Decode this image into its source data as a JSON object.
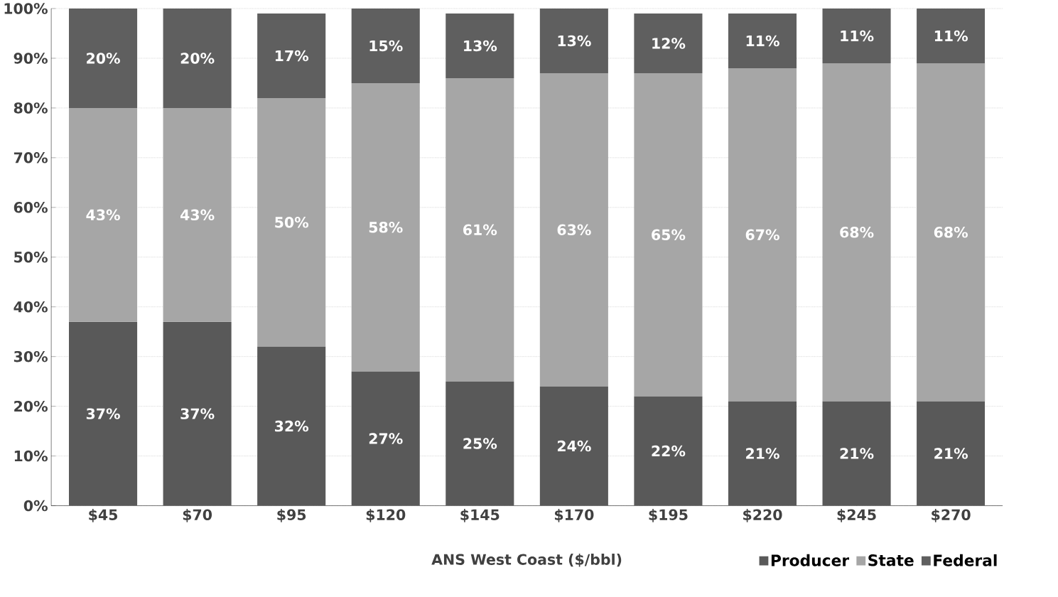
{
  "chart_data": {
    "type": "bar",
    "stacked": true,
    "xlabel": "ANS West Coast ($/bbl)",
    "categories": [
      "$45",
      "$70",
      "$95",
      "$120",
      "$145",
      "$170",
      "$195",
      "$220",
      "$245",
      "$270"
    ],
    "series": [
      {
        "name": "Producer",
        "color": "#595959",
        "values": [
          37,
          37,
          32,
          27,
          25,
          24,
          22,
          21,
          21,
          21
        ],
        "value_labels": [
          "37%",
          "37%",
          "32%",
          "27%",
          "25%",
          "24%",
          "22%",
          "21%",
          "21%",
          "21%"
        ]
      },
      {
        "name": "State",
        "color": "#a6a6a6",
        "values": [
          43,
          43,
          50,
          58,
          61,
          63,
          65,
          67,
          68,
          68
        ],
        "value_labels": [
          "43%",
          "43%",
          "50%",
          "58%",
          "61%",
          "63%",
          "65%",
          "67%",
          "68%",
          "68%"
        ]
      },
      {
        "name": "Federal",
        "color": "#5f5f5f",
        "values": [
          20,
          20,
          17,
          15,
          13,
          13,
          12,
          11,
          11,
          11
        ],
        "value_labels": [
          "20%",
          "20%",
          "17%",
          "15%",
          "13%",
          "13%",
          "12%",
          "11%",
          "11%",
          "11%"
        ]
      }
    ],
    "ylim": [
      0,
      100
    ],
    "yticks": [
      {
        "value": 0,
        "label": "0%"
      },
      {
        "value": 10,
        "label": "10%"
      },
      {
        "value": 20,
        "label": "20%"
      },
      {
        "value": 30,
        "label": "30%"
      },
      {
        "value": 40,
        "label": "40%"
      },
      {
        "value": 50,
        "label": "50%"
      },
      {
        "value": 60,
        "label": "60%"
      },
      {
        "value": 70,
        "label": "70%"
      },
      {
        "value": 80,
        "label": "80%"
      },
      {
        "value": 90,
        "label": "90%"
      },
      {
        "value": 100,
        "label": "100%"
      }
    ],
    "grid": "y",
    "legend": "bottom right"
  }
}
